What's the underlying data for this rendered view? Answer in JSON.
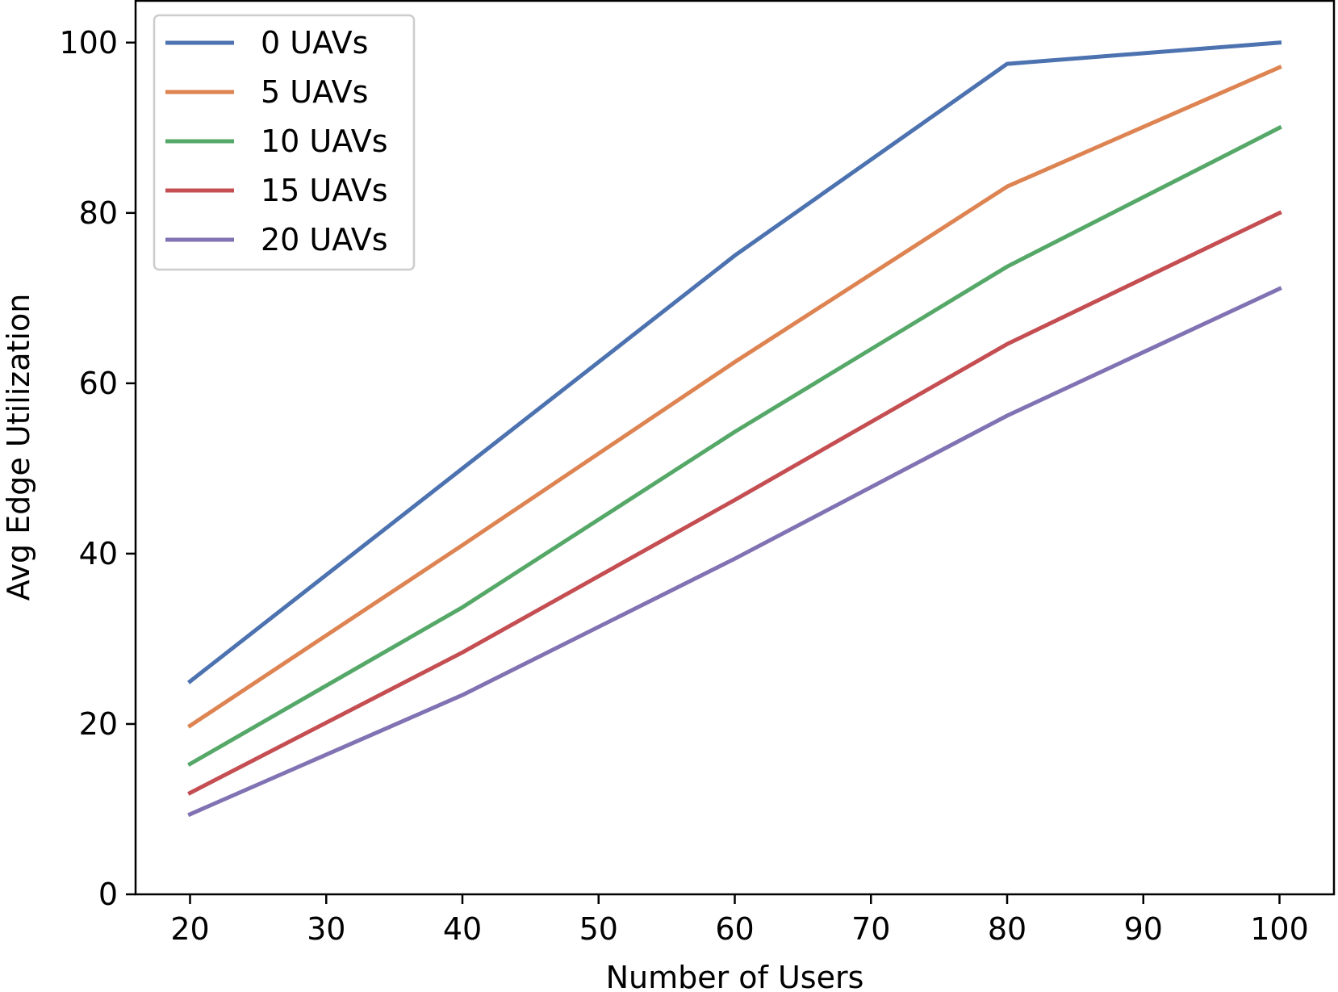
{
  "chart_data": {
    "type": "line",
    "title": "",
    "xlabel": "Number of Users",
    "ylabel": "Avg Edge Utilization",
    "xlim": [
      16,
      104
    ],
    "ylim": [
      0,
      105
    ],
    "xticks": [
      20,
      30,
      40,
      50,
      60,
      70,
      80,
      90,
      100
    ],
    "yticks": [
      0,
      20,
      40,
      60,
      80,
      100
    ],
    "x": [
      20,
      40,
      60,
      80,
      100
    ],
    "grid": false,
    "legend_position": "top-left",
    "series": [
      {
        "name": "0 UAVs",
        "color": "#4c72b0",
        "values": [
          25.0,
          50.0,
          75.0,
          97.5,
          100.0
        ]
      },
      {
        "name": "5 UAVs",
        "color": "#dd8452",
        "values": [
          19.8,
          41.0,
          62.5,
          83.1,
          97.1
        ]
      },
      {
        "name": "10 UAVs",
        "color": "#55a868",
        "values": [
          15.3,
          33.7,
          54.3,
          73.7,
          90.0
        ]
      },
      {
        "name": "15 UAVs",
        "color": "#c44e52",
        "values": [
          11.9,
          28.4,
          46.3,
          64.6,
          80.0
        ]
      },
      {
        "name": "20 UAVs",
        "color": "#8172b3",
        "values": [
          9.4,
          23.4,
          39.4,
          56.2,
          71.1
        ]
      }
    ]
  }
}
